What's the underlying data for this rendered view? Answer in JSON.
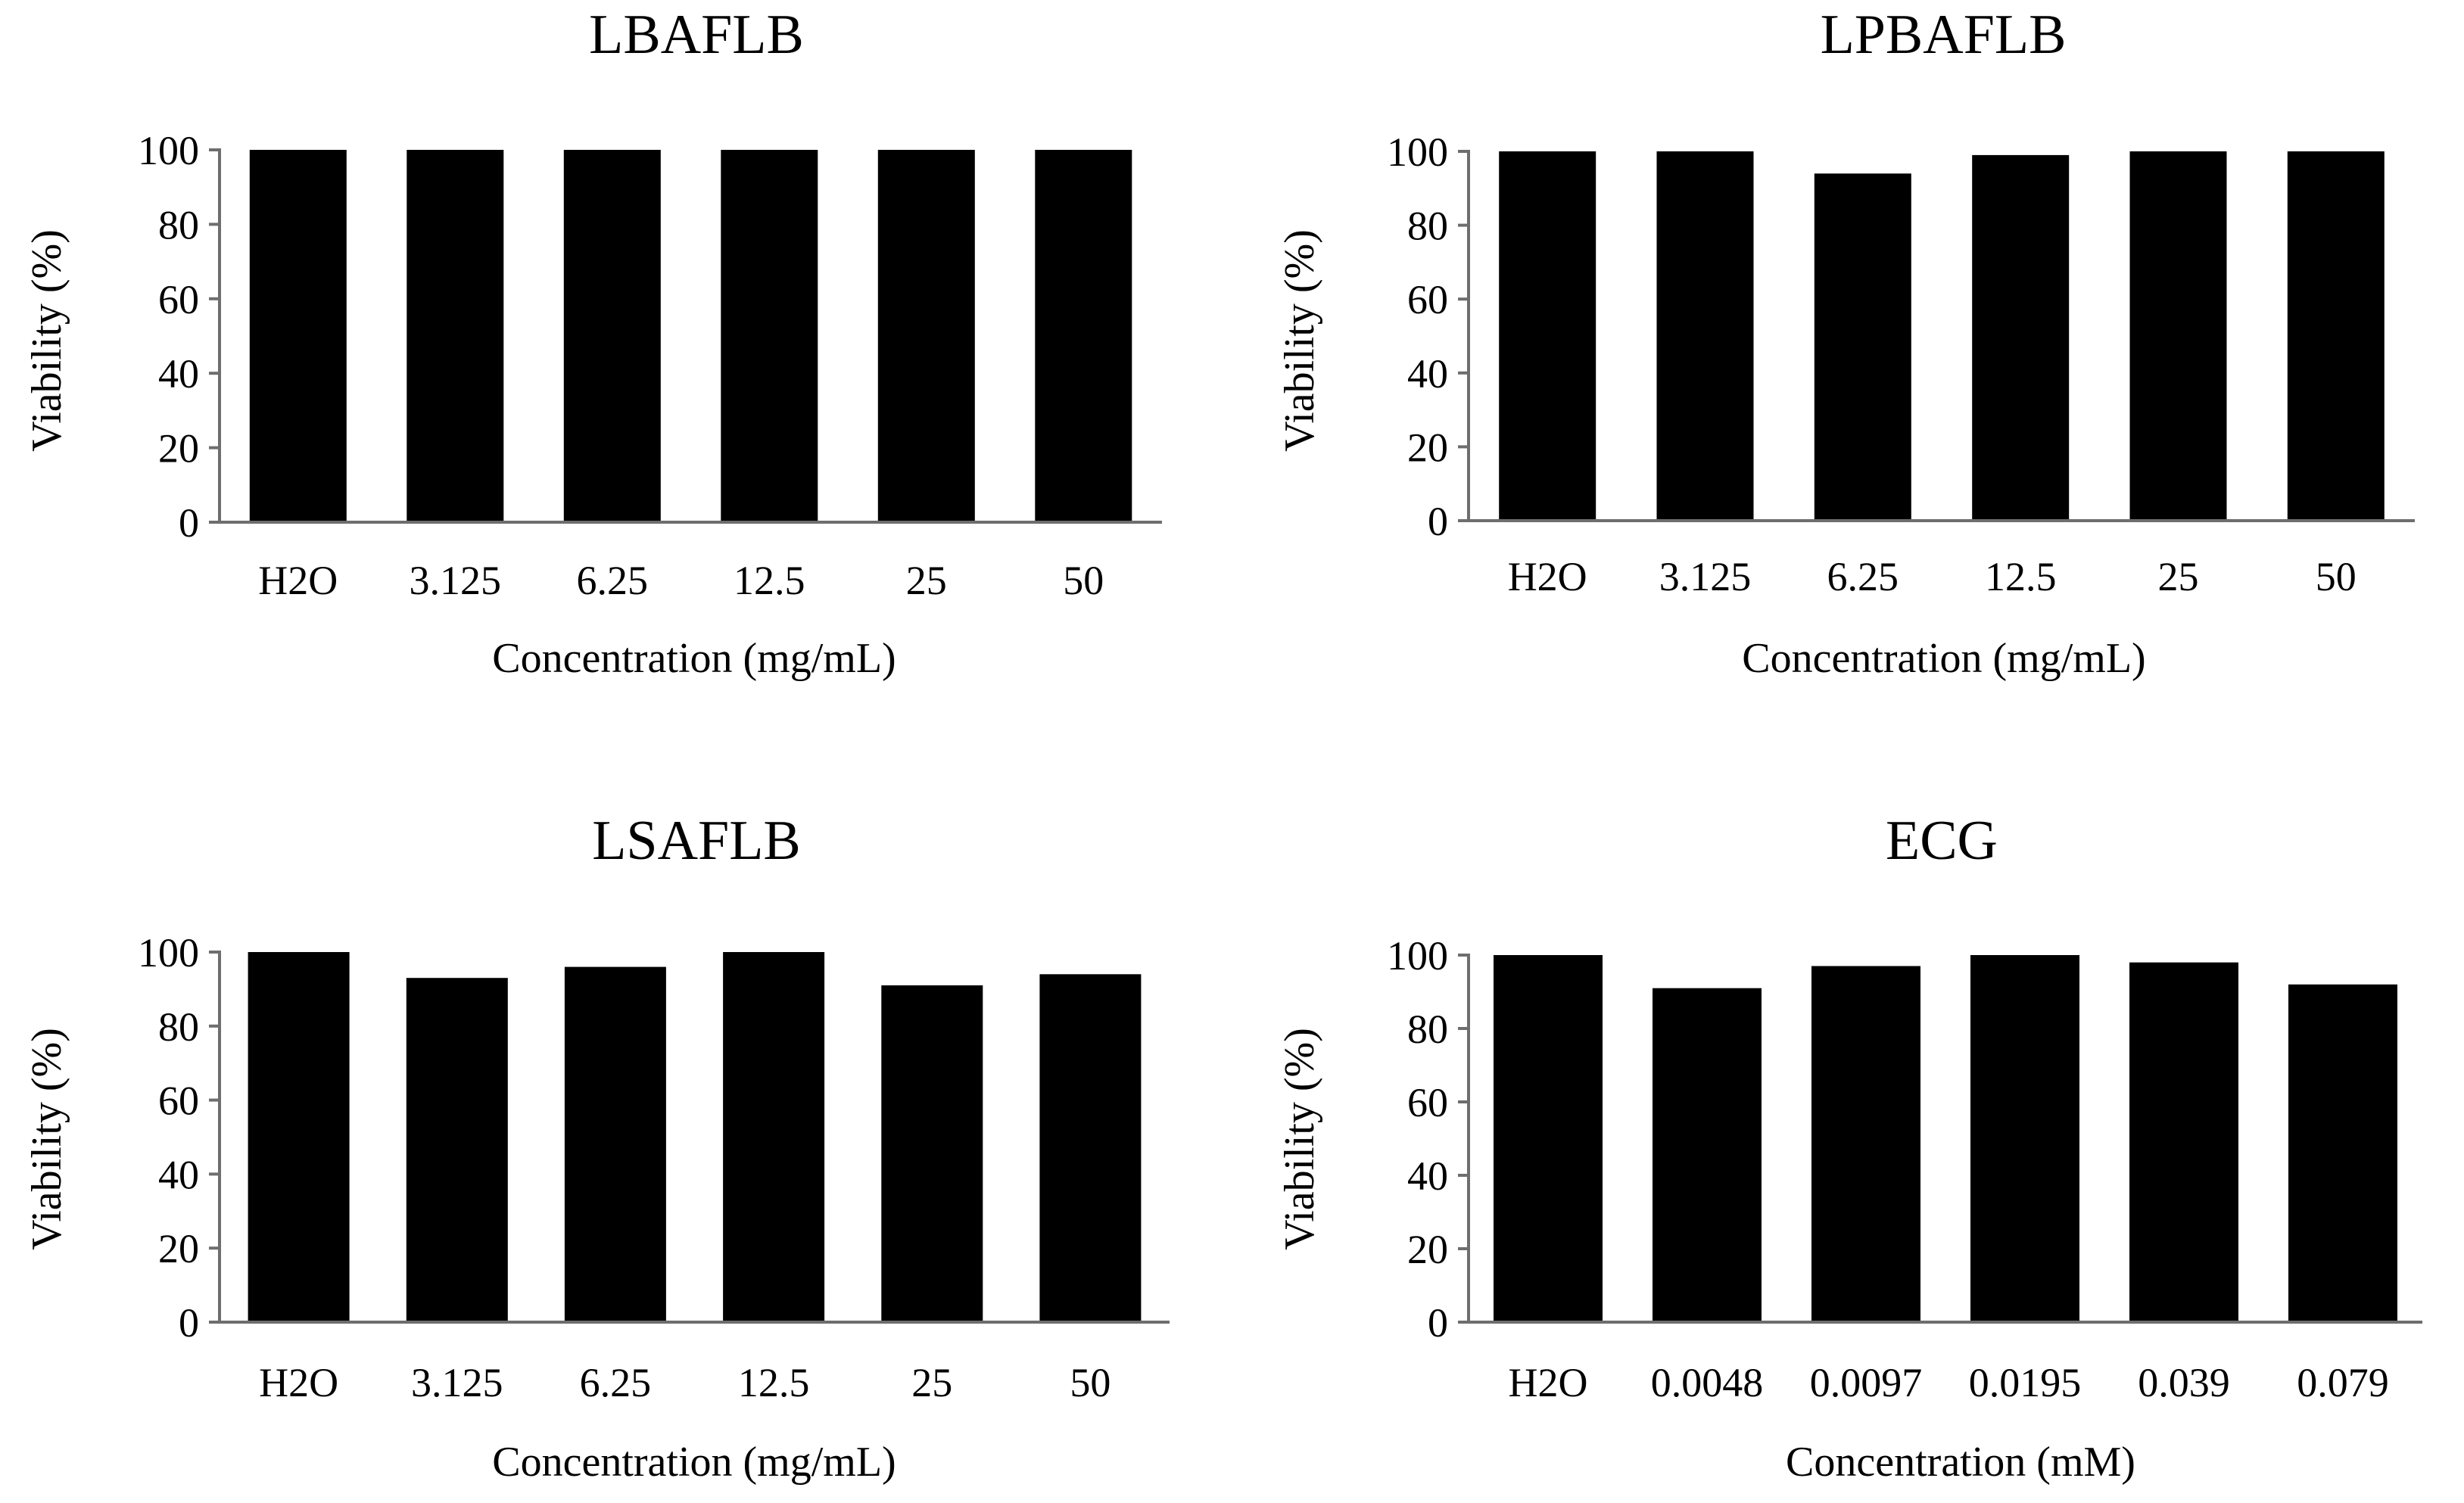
{
  "colors": {
    "bar": "#000000",
    "axis": "#6e6e6e",
    "text": "#000000",
    "background": "#ffffff"
  },
  "chart_data": [
    {
      "type": "bar",
      "title": "LBAFLB",
      "categories": [
        "H2O",
        "3.125",
        "6.25",
        "12.5",
        "25",
        "50"
      ],
      "values": [
        100,
        100,
        100,
        100,
        100,
        100
      ],
      "xlabel": "Concentration (mg/mL)",
      "ylabel": "Viability (%)",
      "ylim": [
        0,
        100
      ],
      "yticks": [
        "0",
        "20",
        "40",
        "60",
        "80",
        "100"
      ],
      "grid": false
    },
    {
      "type": "bar",
      "title": "LPBAFLB",
      "categories": [
        "H2O",
        "3.125",
        "6.25",
        "12.5",
        "25",
        "50"
      ],
      "values": [
        100,
        100,
        94,
        99,
        100,
        100
      ],
      "xlabel": "Concentration (mg/mL)",
      "ylabel": "Viability (%)",
      "ylim": [
        0,
        100
      ],
      "yticks": [
        "0",
        "20",
        "40",
        "60",
        "80",
        "100"
      ],
      "grid": false
    },
    {
      "type": "bar",
      "title": "LSAFLB",
      "categories": [
        "H2O",
        "3.125",
        "6.25",
        "12.5",
        "25",
        "50"
      ],
      "values": [
        100,
        93,
        96,
        100,
        91,
        94
      ],
      "xlabel": "Concentration (mg/mL)",
      "ylabel": "Viability (%)",
      "ylim": [
        0,
        100
      ],
      "yticks": [
        "0",
        "20",
        "40",
        "60",
        "80",
        "100"
      ],
      "grid": false
    },
    {
      "type": "bar",
      "title": "ECG",
      "categories": [
        "H2O",
        "0.0048",
        "0.0097",
        "0.0195",
        "0.039",
        "0.079"
      ],
      "values": [
        100,
        91,
        97,
        100,
        98,
        92
      ],
      "xlabel": "Concentration (mM)",
      "ylabel": "Viability (%)",
      "ylim": [
        0,
        100
      ],
      "yticks": [
        "0",
        "20",
        "40",
        "60",
        "80",
        "100"
      ],
      "grid": false
    }
  ]
}
